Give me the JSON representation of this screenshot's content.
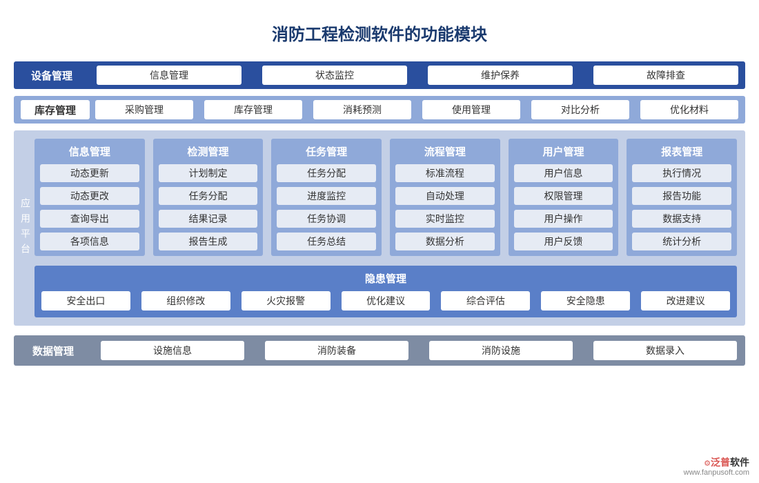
{
  "title": "消防工程检测软件的功能模块",
  "colors": {
    "row1_bg": "#2a4f9e",
    "row2_bg": "#8fa9d9",
    "platform_bg": "#c3cfe6",
    "col_bg": "#8fa9d9",
    "col_item_bg": "#e6ebf4",
    "hazard_bg": "#5a7fc8",
    "data_bg": "#7e8ca3",
    "pill_bg": "#ffffff",
    "title_color": "#1a3a6e"
  },
  "row1": {
    "label": "设备管理",
    "items": [
      "信息管理",
      "状态监控",
      "维护保养",
      "故障排查"
    ]
  },
  "row2": {
    "label": "库存管理",
    "items": [
      "采购管理",
      "库存管理",
      "消耗预测",
      "使用管理",
      "对比分析",
      "优化材料"
    ]
  },
  "platform": {
    "label": "应用平台",
    "columns": [
      {
        "header": "信息管理",
        "items": [
          "动态更新",
          "动态更改",
          "查询导出",
          "各项信息"
        ]
      },
      {
        "header": "检测管理",
        "items": [
          "计划制定",
          "任务分配",
          "结果记录",
          "报告生成"
        ]
      },
      {
        "header": "任务管理",
        "items": [
          "任务分配",
          "进度监控",
          "任务协调",
          "任务总结"
        ]
      },
      {
        "header": "流程管理",
        "items": [
          "标准流程",
          "自动处理",
          "实时监控",
          "数据分析"
        ]
      },
      {
        "header": "用户管理",
        "items": [
          "用户信息",
          "权限管理",
          "用户操作",
          "用户反馈"
        ]
      },
      {
        "header": "报表管理",
        "items": [
          "执行情况",
          "报告功能",
          "数据支持",
          "统计分析"
        ]
      }
    ],
    "hazard": {
      "header": "隐患管理",
      "items": [
        "安全出口",
        "组织修改",
        "火灾报警",
        "优化建议",
        "综合评估",
        "安全隐患",
        "改进建议"
      ]
    }
  },
  "data_row": {
    "label": "数据管理",
    "items": [
      "设施信息",
      "消防装备",
      "消防设施",
      "数据录入"
    ]
  },
  "watermark": {
    "brand": "泛普软件",
    "url": "www.fanpusoft.com"
  }
}
